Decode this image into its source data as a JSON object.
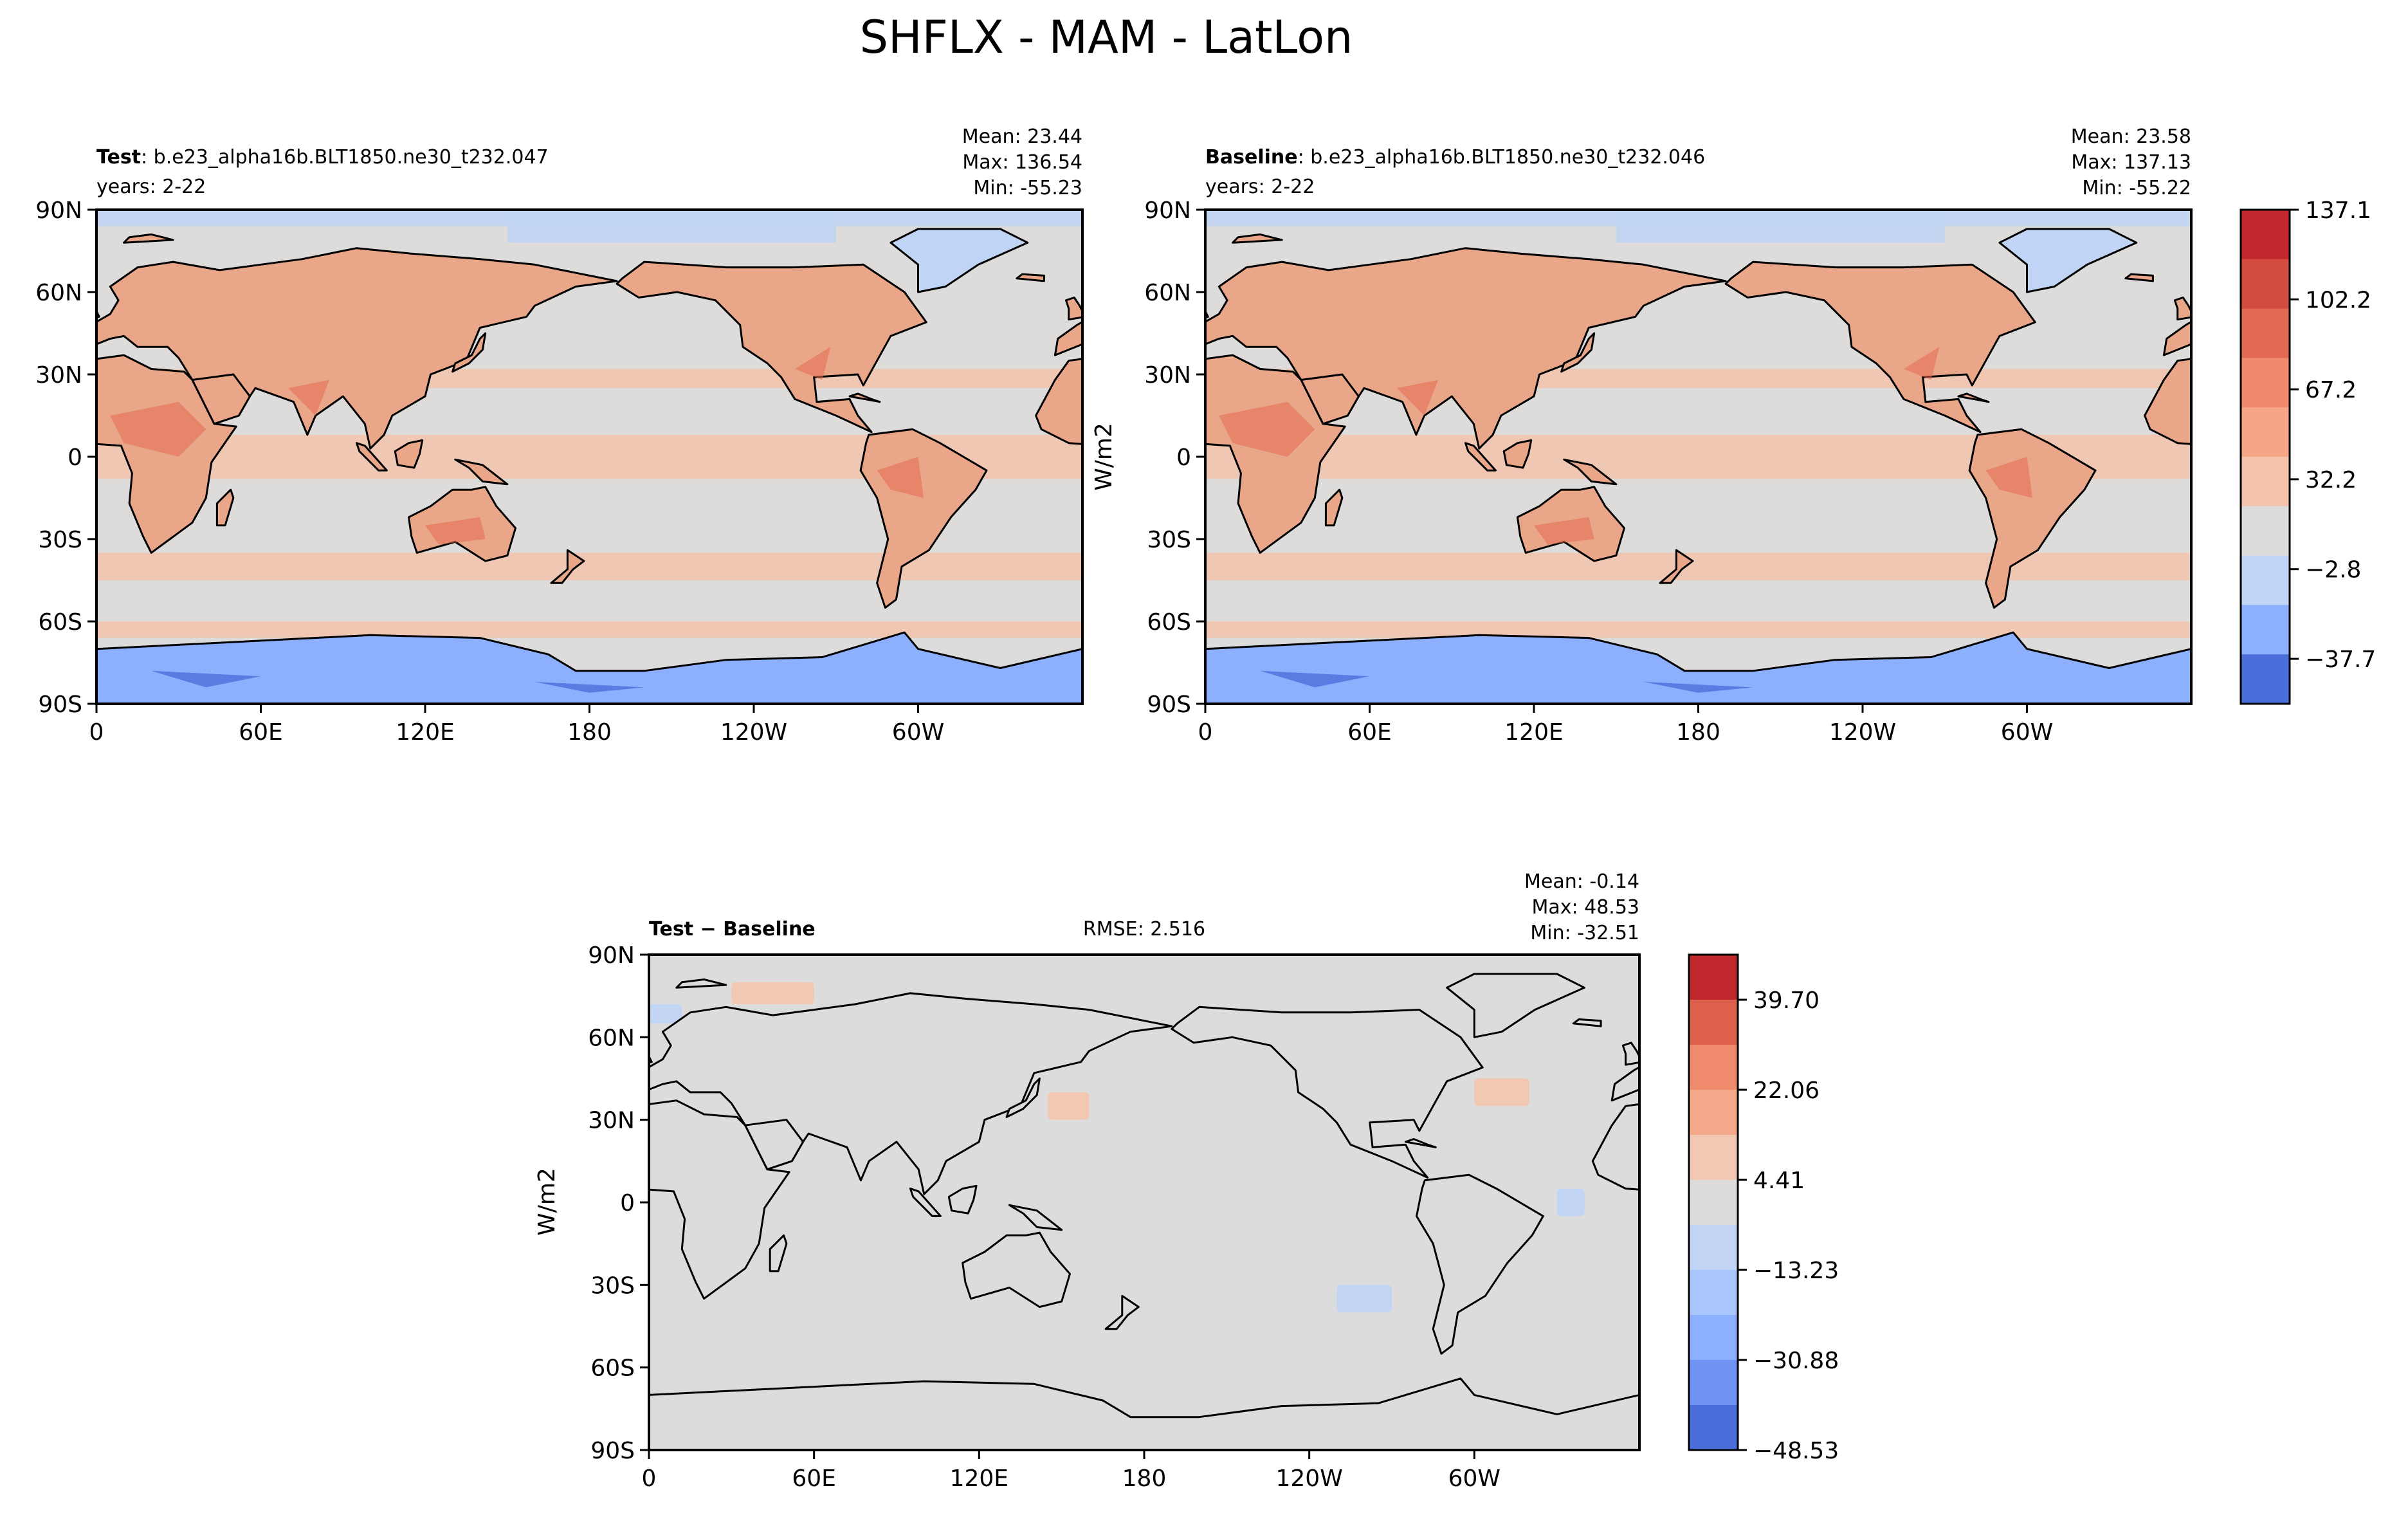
{
  "figure": {
    "title": "SHFLX - MAM - LatLon"
  },
  "colors": {
    "ocean_neutral": "#dddcdb",
    "diff_neutral": "#dcdcdc",
    "land_mid": "#eaa688",
    "land_high": "#dd6d54",
    "ice": "#8db0fe",
    "ice_deep": "#4c6edb",
    "coast": "#000000"
  },
  "panels": {
    "test": {
      "label_bold": "Test",
      "label_rest": ": b.e23_alpha16b.BLT1850.ne30_t232.047",
      "years": "years: 2-22",
      "mean": "Mean: 23.44",
      "max": "Max: 136.54",
      "min": "Min: -55.23"
    },
    "baseline": {
      "label_bold": "Baseline",
      "label_rest": ": b.e23_alpha16b.BLT1850.ne30_t232.046",
      "years": "years: 2-22",
      "mean": "Mean: 23.58",
      "max": "Max: 137.13",
      "min": "Min: -55.22",
      "units": "W/m2"
    },
    "diff": {
      "label_left": "Test",
      "label_op": " − ",
      "label_right": "Baseline",
      "rmse": "RMSE: 2.516",
      "mean": "Mean: -0.14",
      "max": "Max: 48.53",
      "min": "Min: -32.51",
      "units": "W/m2"
    }
  },
  "chart_data": [
    {
      "type": "heatmap",
      "title": "Test: b.e23_alpha16b.BLT1850.ne30_t232.047",
      "field": "SHFLX",
      "season": "MAM",
      "xlim": [
        0,
        360
      ],
      "ylim": [
        -90,
        90
      ],
      "x_ticks": [
        "0",
        "60E",
        "120E",
        "180",
        "120W",
        "60W"
      ],
      "y_ticks": [
        "90N",
        "60N",
        "30N",
        "0",
        "30S",
        "60S",
        "90S"
      ],
      "stats": {
        "mean": 23.44,
        "max": 136.54,
        "min": -55.23
      }
    },
    {
      "type": "heatmap",
      "title": "Baseline: b.e23_alpha16b.BLT1850.ne30_t232.046",
      "field": "SHFLX",
      "season": "MAM",
      "xlim": [
        0,
        360
      ],
      "ylim": [
        -90,
        90
      ],
      "x_ticks": [
        "0",
        "60E",
        "120E",
        "180",
        "120W",
        "60W"
      ],
      "y_ticks": [
        "90N",
        "60N",
        "30N",
        "0",
        "30S",
        "60S",
        "90S"
      ],
      "stats": {
        "mean": 23.58,
        "max": 137.13,
        "min": -55.22
      },
      "colorbar": {
        "label": "W/m2",
        "range": [
          -55.2,
          137.1
        ],
        "tick_labels": [
          "137.1",
          "102.2",
          "67.2",
          "32.2",
          "−2.8",
          "−37.7"
        ],
        "tick_values": [
          137.1,
          102.2,
          67.2,
          32.2,
          -2.8,
          -37.7
        ],
        "colors_top_to_bottom": [
          "#c0282d",
          "#d24d3e",
          "#e26952",
          "#f08a6c",
          "#f6a685",
          "#f3c3ab",
          "#dddcdb",
          "#c0d4f5",
          "#8db0fe",
          "#4c6edb"
        ]
      }
    },
    {
      "type": "heatmap",
      "title": "Test − Baseline",
      "field": "SHFLX difference",
      "season": "MAM",
      "xlim": [
        0,
        360
      ],
      "ylim": [
        -90,
        90
      ],
      "x_ticks": [
        "0",
        "60E",
        "120E",
        "180",
        "120W",
        "60W"
      ],
      "y_ticks": [
        "90N",
        "60N",
        "30N",
        "0",
        "30S",
        "60S",
        "90S"
      ],
      "stats": {
        "mean": -0.14,
        "max": 48.53,
        "min": -32.51,
        "rmse": 2.516
      },
      "colorbar": {
        "label": "W/m2",
        "range": [
          -48.53,
          48.53
        ],
        "tick_labels": [
          "39.70",
          "22.06",
          "4.41",
          "−13.23",
          "−30.88",
          "−48.53"
        ],
        "tick_values": [
          39.7,
          22.06,
          4.41,
          -13.23,
          -30.88,
          -48.53
        ],
        "colors_top_to_bottom": [
          "#c0282d",
          "#de614d",
          "#f08b6e",
          "#f6a98a",
          "#f3c8b2",
          "#dcdcdc",
          "#c3d5f4",
          "#a9c6fd",
          "#8db0fe",
          "#6f92f3",
          "#4c6edb"
        ]
      }
    }
  ]
}
